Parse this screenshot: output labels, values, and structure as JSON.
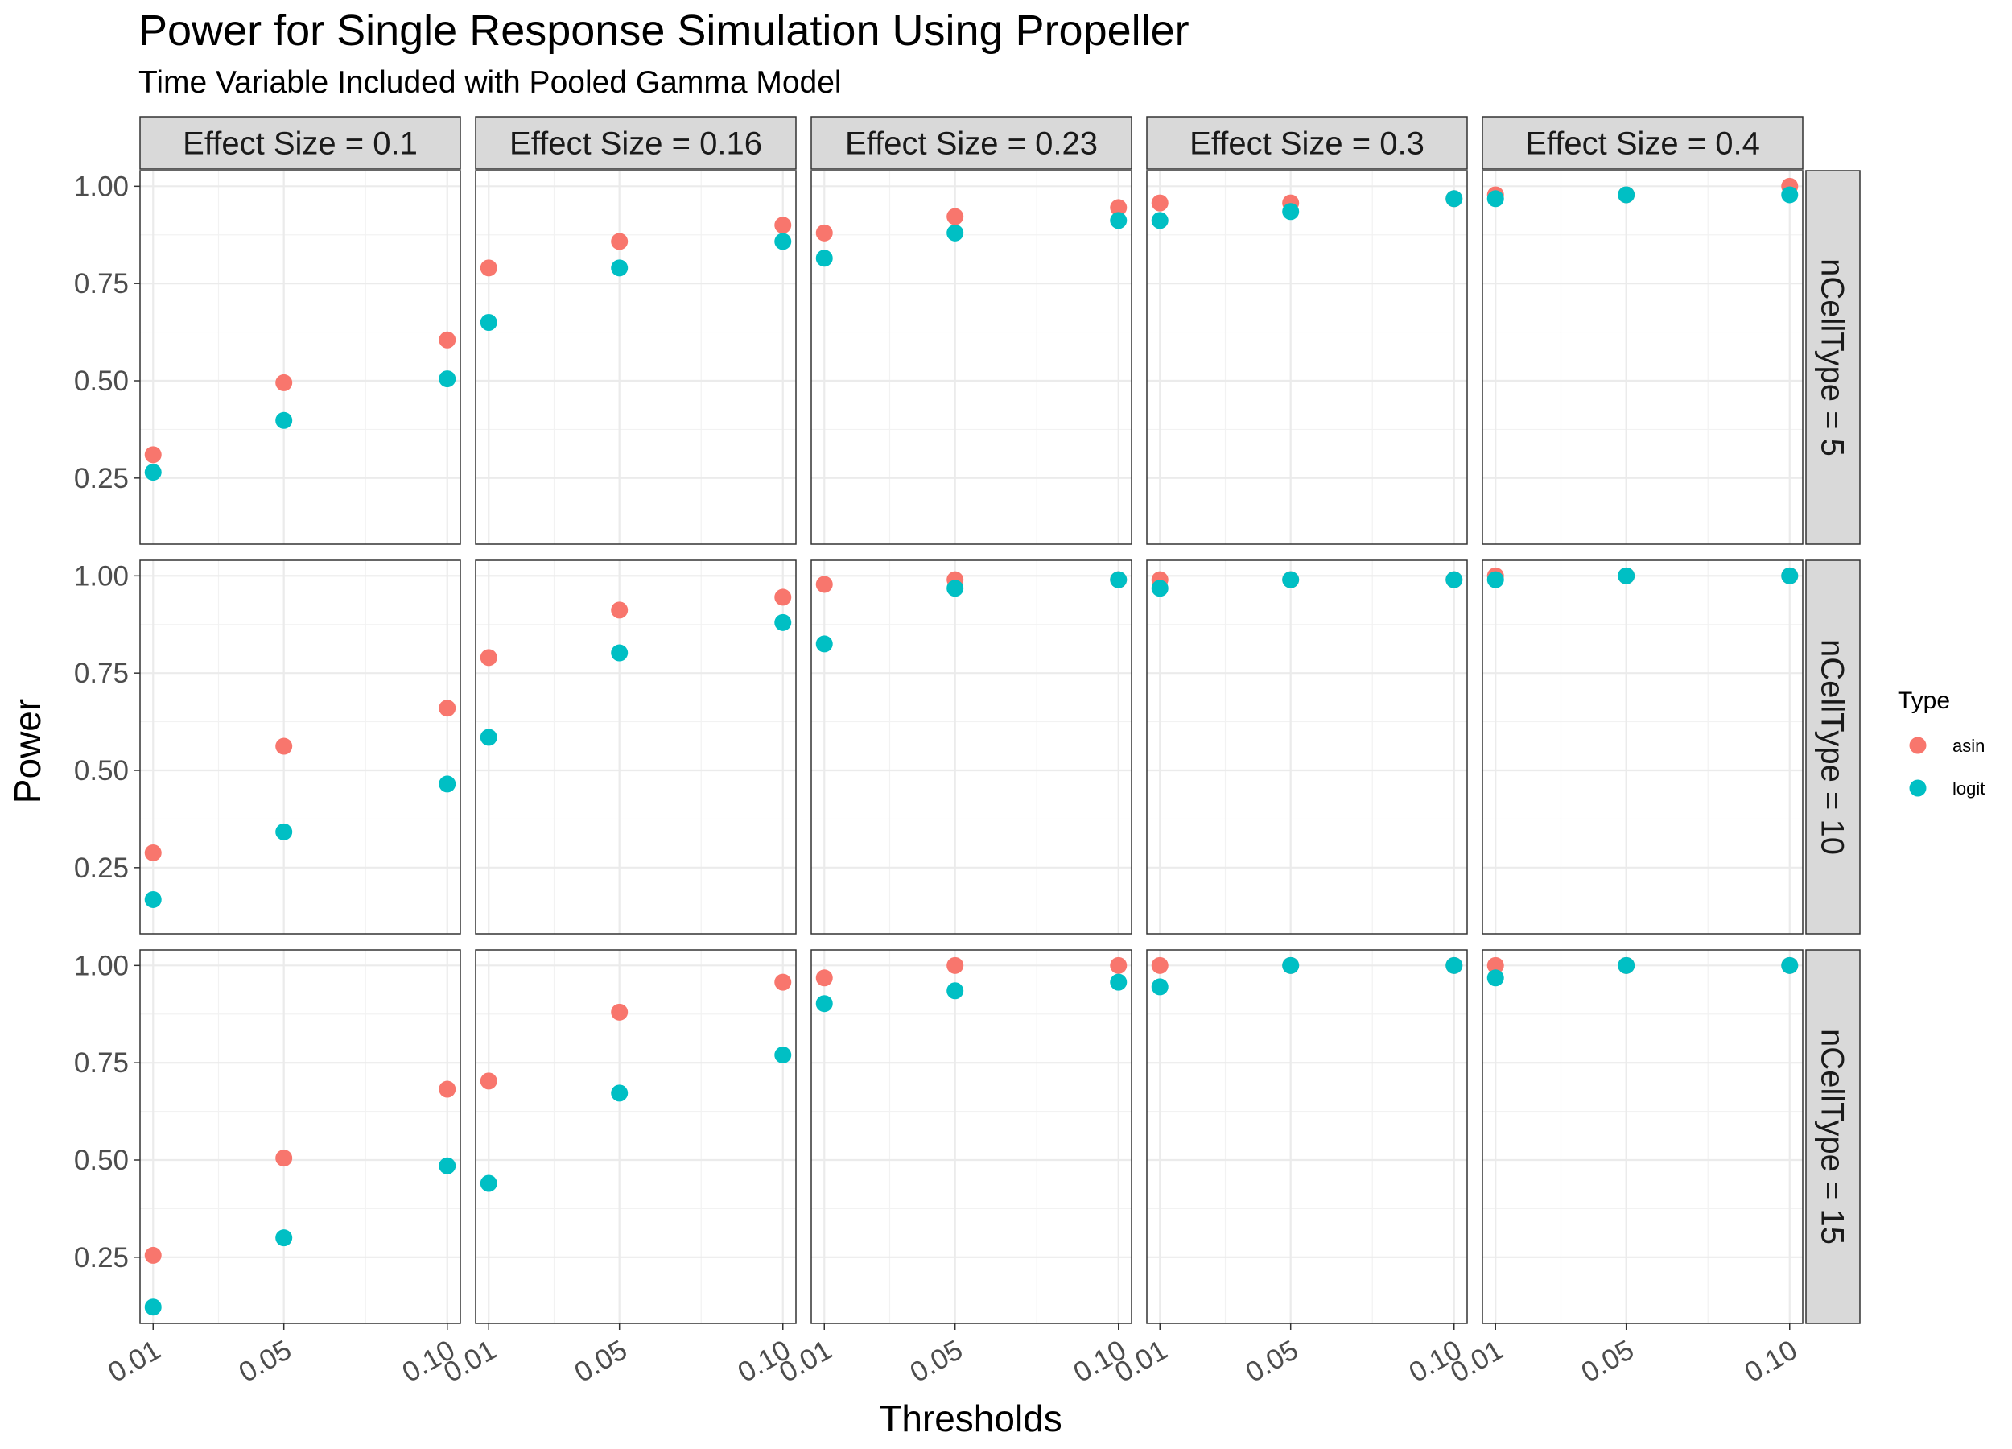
{
  "chart_data": {
    "type": "scatter",
    "title": "Power for Single Response Simulation Using Propeller",
    "subtitle": "Time Variable Included with Pooled Gamma Model",
    "xlabel": "Thresholds",
    "ylabel": "Power",
    "x": [
      0.01,
      0.05,
      0.1
    ],
    "x_tick_labels": [
      "0.01",
      "0.05",
      "0.10"
    ],
    "y_ticks": [
      0.25,
      0.5,
      0.75,
      1.0
    ],
    "y_tick_labels": [
      "0.25",
      "0.50",
      "0.75",
      "1.00"
    ],
    "ylim": [
      0.08,
      1.04
    ],
    "xlim": [
      0.006,
      0.104
    ],
    "grid": true,
    "facet_columns": [
      "Effect Size = 0.1",
      "Effect Size = 0.16",
      "Effect Size = 0.23",
      "Effect Size = 0.3",
      "Effect Size = 0.4"
    ],
    "facet_rows": [
      "nCellType = 5",
      "nCellType = 10",
      "nCellType = 15"
    ],
    "legend": {
      "title": "Type",
      "placement": "right",
      "entries": [
        {
          "name": "asin",
          "color": "#F8766D"
        },
        {
          "name": "logit",
          "color": "#00BFC4"
        }
      ]
    },
    "panels": [
      [
        {
          "asin": [
            0.31,
            0.495,
            0.605
          ],
          "logit": [
            0.265,
            0.398,
            0.505
          ]
        },
        {
          "asin": [
            0.79,
            0.858,
            0.9
          ],
          "logit": [
            0.65,
            0.79,
            0.858
          ]
        },
        {
          "asin": [
            0.88,
            0.922,
            0.945
          ],
          "logit": [
            0.815,
            0.88,
            0.912
          ]
        },
        {
          "asin": [
            0.957,
            0.957,
            0.968
          ],
          "logit": [
            0.912,
            0.935,
            0.968
          ]
        },
        {
          "asin": [
            0.978,
            0.978,
            1.0
          ],
          "logit": [
            0.968,
            0.978,
            0.978
          ]
        }
      ],
      [
        {
          "asin": [
            0.288,
            0.562,
            0.66
          ],
          "logit": [
            0.168,
            0.342,
            0.465
          ]
        },
        {
          "asin": [
            0.79,
            0.912,
            0.945
          ],
          "logit": [
            0.585,
            0.802,
            0.88
          ]
        },
        {
          "asin": [
            0.978,
            0.99,
            0.99
          ],
          "logit": [
            0.825,
            0.968,
            0.99
          ]
        },
        {
          "asin": [
            0.99,
            0.99,
            0.99
          ],
          "logit": [
            0.968,
            0.99,
            0.99
          ]
        },
        {
          "asin": [
            1.0,
            1.0,
            1.0
          ],
          "logit": [
            0.99,
            1.0,
            1.0
          ]
        }
      ],
      [
        {
          "asin": [
            0.255,
            0.505,
            0.682
          ],
          "logit": [
            0.122,
            0.3,
            0.485
          ]
        },
        {
          "asin": [
            0.703,
            0.88,
            0.957
          ],
          "logit": [
            0.44,
            0.672,
            0.77
          ]
        },
        {
          "asin": [
            0.968,
            1.0,
            1.0
          ],
          "logit": [
            0.902,
            0.935,
            0.957
          ]
        },
        {
          "asin": [
            1.0,
            1.0,
            1.0
          ],
          "logit": [
            0.945,
            1.0,
            1.0
          ]
        },
        {
          "asin": [
            1.0,
            1.0,
            1.0
          ],
          "logit": [
            0.968,
            1.0,
            1.0
          ]
        }
      ]
    ]
  }
}
